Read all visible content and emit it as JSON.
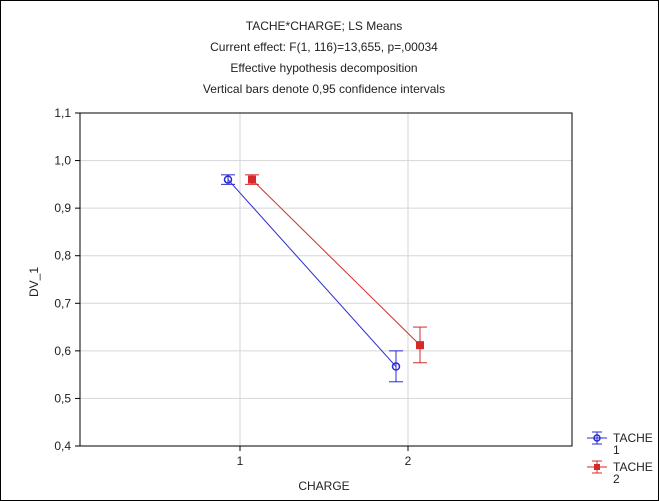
{
  "chart_data": {
    "type": "line",
    "title_lines": [
      "TACHE*CHARGE; LS Means",
      "Current effect: F(1, 116)=13,655, p=,00034",
      "Effective hypothesis decomposition",
      "Vertical bars denote 0,95 confidence intervals"
    ],
    "xlabel": "CHARGE",
    "ylabel": "DV_1",
    "categories": [
      "1",
      "2"
    ],
    "ylim": [
      0.4,
      1.1
    ],
    "yticks": [
      0.4,
      0.5,
      0.6,
      0.7,
      0.8,
      0.9,
      1.0,
      1.1
    ],
    "ytick_labels": [
      "0,4",
      "0,5",
      "0,6",
      "0,7",
      "0,8",
      "0,9",
      "1,0",
      "1,1"
    ],
    "grid": true,
    "legend_title": "TACHE",
    "legend_position": "bottom-right",
    "series": [
      {
        "name": "1",
        "color": "#2a2ad4",
        "marker": "circle",
        "values": [
          0.96,
          0.567
        ],
        "ci_low": [
          0.95,
          0.535
        ],
        "ci_high": [
          0.97,
          0.6
        ]
      },
      {
        "name": "2",
        "color": "#d42a2a",
        "marker": "square",
        "values": [
          0.96,
          0.612
        ],
        "ci_low": [
          0.95,
          0.575
        ],
        "ci_high": [
          0.97,
          0.65
        ]
      }
    ]
  }
}
